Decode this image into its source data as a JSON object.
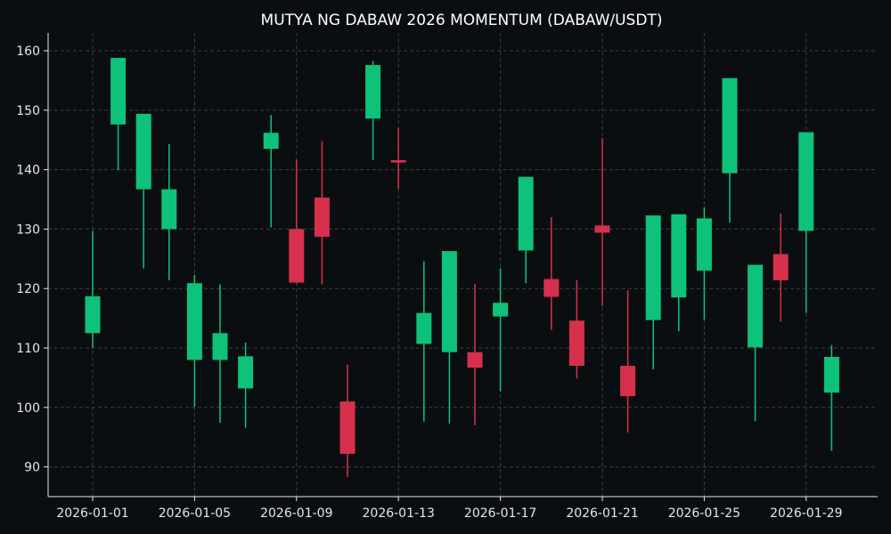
{
  "chart_data": {
    "type": "candlestick",
    "title": "MUTYA NG DABAW 2026 MOMENTUM (DABAW/USDT)",
    "xlabel": "",
    "ylabel": "",
    "ylim": [
      85,
      163
    ],
    "yticks": [
      90,
      100,
      110,
      120,
      130,
      140,
      150,
      160
    ],
    "xtick_labels": [
      "2026-01-01",
      "2026-01-05",
      "2026-01-09",
      "2026-01-13",
      "2026-01-17",
      "2026-01-21",
      "2026-01-25",
      "2026-01-29"
    ],
    "grid": true,
    "background": "#0b0e11",
    "colors": {
      "up": "#0ec27a",
      "down": "#d7304c",
      "grid": "#3a3f44",
      "axis": "#e6e6e6",
      "text": "#ffffff"
    },
    "candles": [
      {
        "date": "2026-01-01",
        "open": 112.5,
        "high": 129.7,
        "low": 110.0,
        "close": 118.7
      },
      {
        "date": "2026-01-02",
        "open": 147.6,
        "high": 158.8,
        "low": 139.9,
        "close": 158.8
      },
      {
        "date": "2026-01-03",
        "open": 136.7,
        "high": 149.4,
        "low": 123.4,
        "close": 149.4
      },
      {
        "date": "2026-01-04",
        "open": 130.0,
        "high": 144.3,
        "low": 121.4,
        "close": 136.7
      },
      {
        "date": "2026-01-05",
        "open": 108.0,
        "high": 122.3,
        "low": 100.1,
        "close": 120.9
      },
      {
        "date": "2026-01-06",
        "open": 108.0,
        "high": 120.7,
        "low": 97.4,
        "close": 112.5
      },
      {
        "date": "2026-01-07",
        "open": 103.2,
        "high": 110.9,
        "low": 96.6,
        "close": 108.6
      },
      {
        "date": "2026-01-08",
        "open": 143.5,
        "high": 149.2,
        "low": 130.3,
        "close": 146.2
      },
      {
        "date": "2026-01-09",
        "open": 130.0,
        "high": 141.7,
        "low": 120.9,
        "close": 121.0
      },
      {
        "date": "2026-01-10",
        "open": 135.3,
        "high": 144.8,
        "low": 120.7,
        "close": 128.7
      },
      {
        "date": "2026-01-11",
        "open": 101.0,
        "high": 107.2,
        "low": 88.3,
        "close": 92.2
      },
      {
        "date": "2026-01-12",
        "open": 148.6,
        "high": 158.3,
        "low": 141.6,
        "close": 157.6
      },
      {
        "date": "2026-01-13",
        "open": 141.6,
        "high": 147.0,
        "low": 136.8,
        "close": 141.2
      },
      {
        "date": "2026-01-14",
        "open": 110.7,
        "high": 124.6,
        "low": 97.6,
        "close": 115.9
      },
      {
        "date": "2026-01-15",
        "open": 109.3,
        "high": 126.3,
        "low": 97.3,
        "close": 126.3
      },
      {
        "date": "2026-01-16",
        "open": 109.3,
        "high": 120.8,
        "low": 97.0,
        "close": 106.7
      },
      {
        "date": "2026-01-17",
        "open": 115.3,
        "high": 123.4,
        "low": 102.7,
        "close": 117.6
      },
      {
        "date": "2026-01-18",
        "open": 126.4,
        "high": 138.8,
        "low": 120.9,
        "close": 138.8
      },
      {
        "date": "2026-01-19",
        "open": 121.6,
        "high": 132.0,
        "low": 113.0,
        "close": 118.6
      },
      {
        "date": "2026-01-20",
        "open": 114.6,
        "high": 121.4,
        "low": 104.9,
        "close": 107.0
      },
      {
        "date": "2026-01-21",
        "open": 130.6,
        "high": 145.3,
        "low": 117.1,
        "close": 129.4
      },
      {
        "date": "2026-01-22",
        "open": 107.0,
        "high": 119.7,
        "low": 95.8,
        "close": 101.9
      },
      {
        "date": "2026-01-23",
        "open": 114.7,
        "high": 132.3,
        "low": 106.4,
        "close": 132.3
      },
      {
        "date": "2026-01-24",
        "open": 118.5,
        "high": 132.5,
        "low": 112.8,
        "close": 132.5
      },
      {
        "date": "2026-01-25",
        "open": 123.0,
        "high": 133.7,
        "low": 114.8,
        "close": 131.8
      },
      {
        "date": "2026-01-26",
        "open": 139.4,
        "high": 155.4,
        "low": 131.1,
        "close": 155.4
      },
      {
        "date": "2026-01-27",
        "open": 110.1,
        "high": 124.0,
        "low": 97.7,
        "close": 124.0
      },
      {
        "date": "2026-01-28",
        "open": 125.8,
        "high": 132.6,
        "low": 114.4,
        "close": 121.4
      },
      {
        "date": "2026-01-29",
        "open": 129.7,
        "high": 146.3,
        "low": 115.9,
        "close": 146.3
      },
      {
        "date": "2026-01-30",
        "open": 102.5,
        "high": 110.5,
        "low": 92.7,
        "close": 108.5
      }
    ]
  }
}
